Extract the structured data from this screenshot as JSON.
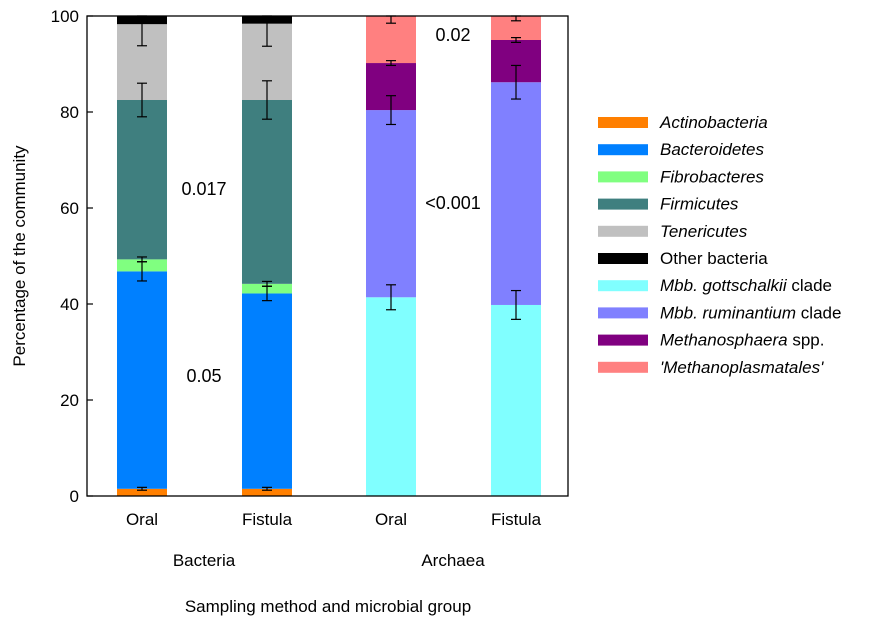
{
  "chart_data": {
    "type": "bar",
    "stacked": true,
    "ylabel": "Percentage of the community",
    "xlabel": "Sampling method and microbial group",
    "ylim": [
      0,
      100
    ],
    "yticks": [
      "0",
      "20",
      "40",
      "60",
      "80",
      "100"
    ],
    "grid": false,
    "legend_position": "right",
    "groups": [
      {
        "name": "Bacteria",
        "bars": [
          {
            "label": "Oral",
            "segments": [
              {
                "series": "Actinobacteria",
                "value": 1.5,
                "error": 0.3
              },
              {
                "series": "Bacteroidetes",
                "value": 45.3,
                "error": 2.0
              },
              {
                "series": "Fibrobacteres",
                "value": 2.5,
                "error": 0.5
              },
              {
                "series": "Firmicutes",
                "value": 33.2,
                "error": 3.5
              },
              {
                "series": "Tenericutes",
                "value": 15.8,
                "error": 4.5
              },
              {
                "series": "Other bacteria",
                "value": 1.7,
                "error": 0
              }
            ]
          },
          {
            "label": "Fistula",
            "segments": [
              {
                "series": "Actinobacteria",
                "value": 1.5,
                "error": 0.3
              },
              {
                "series": "Bacteroidetes",
                "value": 40.7,
                "error": 1.5
              },
              {
                "series": "Fibrobacteres",
                "value": 2.0,
                "error": 0.5
              },
              {
                "series": "Firmicutes",
                "value": 38.3,
                "error": 4.0
              },
              {
                "series": "Tenericutes",
                "value": 15.9,
                "error": 4.7
              },
              {
                "series": "Other bacteria",
                "value": 1.6,
                "error": 0
              }
            ]
          }
        ]
      },
      {
        "name": "Archaea",
        "bars": [
          {
            "label": "Oral",
            "segments": [
              {
                "series": "Mbb. gottschalkii clade",
                "value": 41.4,
                "error": 2.6
              },
              {
                "series": "Mbb. ruminantium clade",
                "value": 39.0,
                "error": 3.0
              },
              {
                "series": "Methanosphaera spp.",
                "value": 9.8,
                "error": 0.5
              },
              {
                "series": "'Methanoplasmatales'",
                "value": 9.8,
                "error": 1.5
              }
            ]
          },
          {
            "label": "Fistula",
            "segments": [
              {
                "series": "Mbb. gottschalkii clade",
                "value": 39.8,
                "error": 3.0
              },
              {
                "series": "Mbb. ruminantium clade",
                "value": 46.4,
                "error": 3.5
              },
              {
                "series": "Methanosphaera spp.",
                "value": 8.8,
                "error": 0.5
              },
              {
                "series": "'Methanoplasmatales'",
                "value": 5.0,
                "error": 1.0
              }
            ]
          }
        ]
      }
    ],
    "annotations": [
      {
        "text": "0.017",
        "group": "Bacteria",
        "y": 64
      },
      {
        "text": "0.05",
        "group": "Bacteria",
        "y": 25
      },
      {
        "text": "<0.001",
        "group": "Archaea",
        "y": 61
      },
      {
        "text": "0.02",
        "group": "Archaea",
        "y": 96
      }
    ],
    "legend": [
      {
        "name": "Actinobacteria",
        "main": "Actinobacteria",
        "italic": true,
        "suffix": "",
        "color": "#ff7f00"
      },
      {
        "name": "Bacteroidetes",
        "main": "Bacteroidetes",
        "italic": true,
        "suffix": "",
        "color": "#0080ff"
      },
      {
        "name": "Fibrobacteres",
        "main": "Fibrobacteres",
        "italic": true,
        "suffix": "",
        "color": "#80ff80"
      },
      {
        "name": "Firmicutes",
        "main": "Firmicutes",
        "italic": true,
        "suffix": "",
        "color": "#3f7f7f"
      },
      {
        "name": "Tenericutes",
        "main": "Tenericutes",
        "italic": true,
        "suffix": "",
        "color": "#c0c0c0"
      },
      {
        "name": "Other bacteria",
        "main": "Other bacteria",
        "italic": false,
        "suffix": "",
        "color": "#000000"
      },
      {
        "name": "Mbb. gottschalkii clade",
        "main": "Mbb. gottschalkii",
        "italic": true,
        "suffix": " clade",
        "color": "#80ffff"
      },
      {
        "name": "Mbb. ruminantium clade",
        "main": "Mbb. ruminantium",
        "italic": true,
        "suffix": " clade",
        "color": "#8080ff"
      },
      {
        "name": "Methanosphaera spp.",
        "main": "Methanosphaera",
        "italic": true,
        "suffix": " spp.",
        "color": "#800080"
      },
      {
        "name": "'Methanoplasmatales'",
        "main": "'Methanoplasmatales'",
        "italic": true,
        "suffix": "",
        "color": "#ff8080"
      }
    ]
  }
}
